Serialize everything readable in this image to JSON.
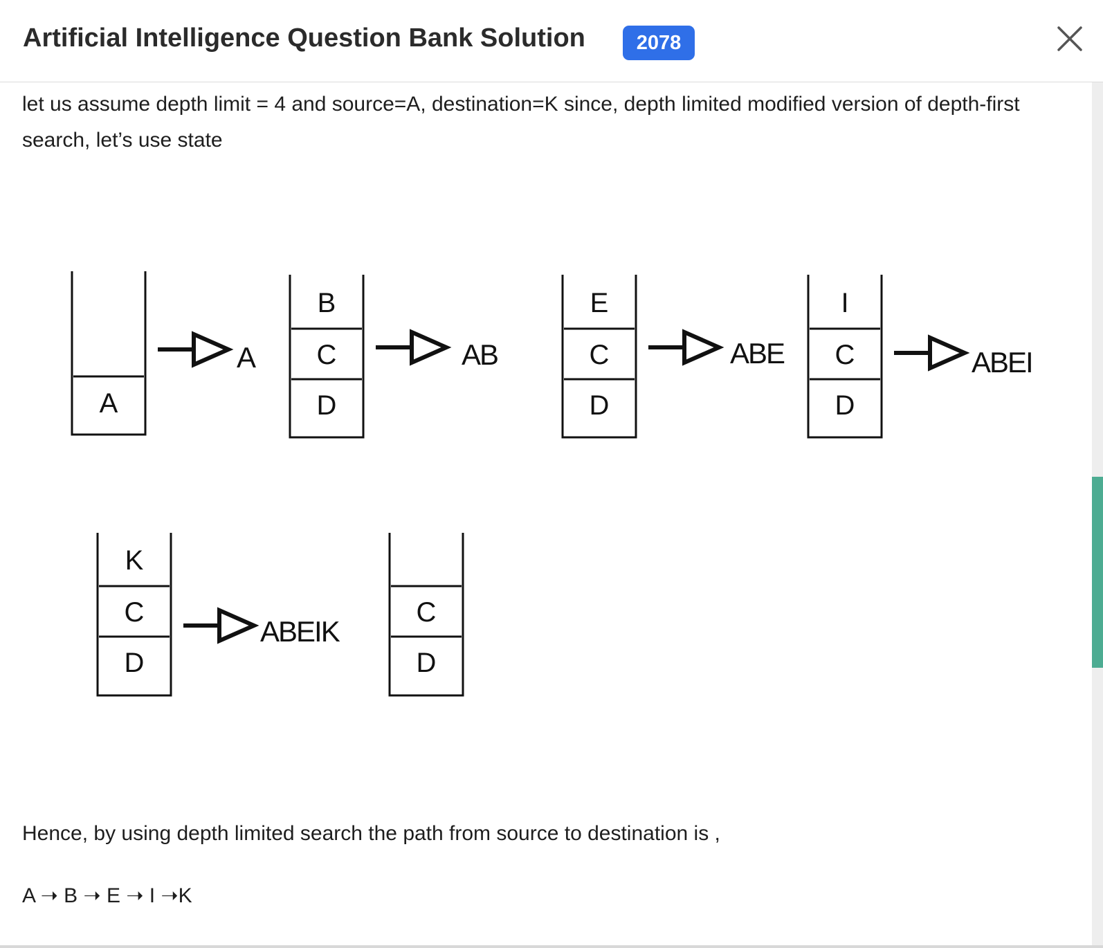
{
  "dialog": {
    "title": "Artificial Intelligence Question Bank Solution",
    "badge": "2078",
    "close_icon": "close-icon"
  },
  "content": {
    "intro": "let us assume depth limit = 4 and source=A, destination=K  since, depth limited modified version of depth-first search, let’s use state",
    "conclusion": "Hence, by using depth limited search the path from source to destination is ,",
    "path": "A ➝ B ➝ E ➝ I ➝K"
  },
  "diagram": {
    "stacks": [
      {
        "cells": [
          "",
          "A"
        ],
        "visited": "A"
      },
      {
        "cells": [
          "B",
          "C",
          "D"
        ],
        "visited": "AB"
      },
      {
        "cells": [
          "E",
          "C",
          "D"
        ],
        "visited": "ABE"
      },
      {
        "cells": [
          "I",
          "C",
          "D"
        ],
        "visited": "ABEI"
      },
      {
        "cells": [
          "K",
          "C",
          "D"
        ],
        "visited": "ABEIK"
      },
      {
        "cells": [
          "",
          "C",
          "D"
        ],
        "visited": ""
      }
    ]
  },
  "colors": {
    "badge": "#2f6fe8",
    "scroll_thumb": "#4dac92",
    "text": "#1e1e1e"
  }
}
